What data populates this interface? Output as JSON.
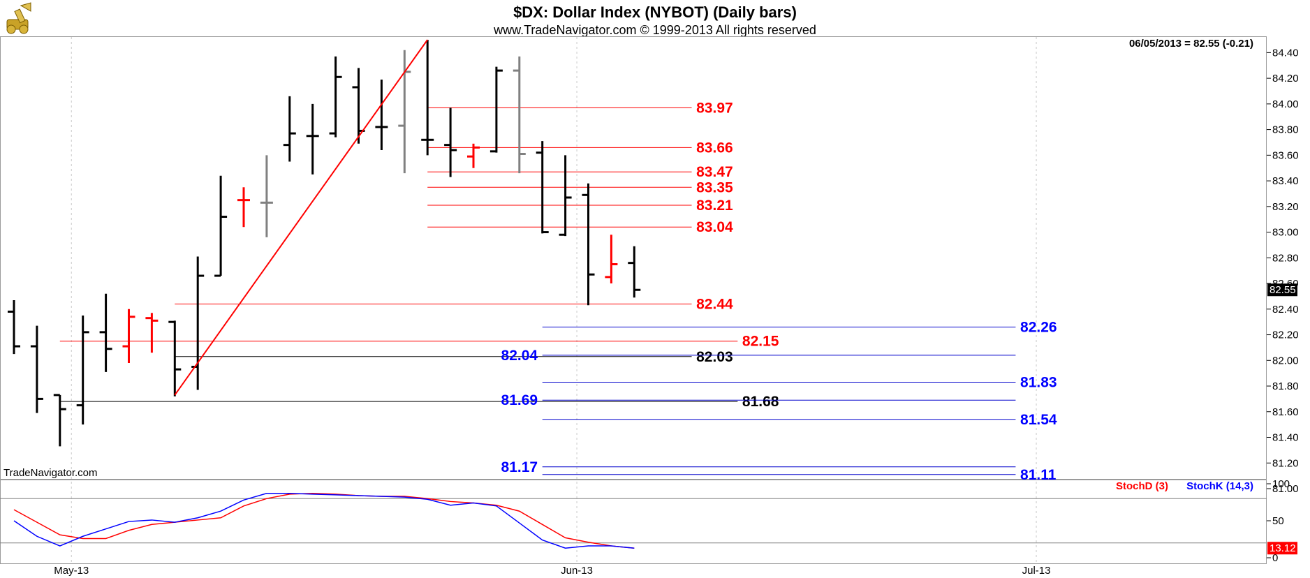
{
  "header": {
    "title": "$DX:  Dollar Index (NYBOT)  (Daily bars)",
    "subtitle": "www.TradeNavigator.com © 1999-2013 All rights reserved",
    "last_quote": "06/05/2013 = 82.55 (-0.21)",
    "watermark": "TradeNavigator.com",
    "logo_icon": "cannon-icon"
  },
  "chart_data": [
    {
      "type": "ohlc",
      "ylim": [
        81.0,
        84.5
      ],
      "yticks": [
        "84.40",
        "84.20",
        "84.00",
        "83.80",
        "83.60",
        "83.40",
        "83.20",
        "83.00",
        "82.80",
        "82.60",
        "82.40",
        "82.20",
        "82.00",
        "81.80",
        "81.60",
        "81.40",
        "81.20",
        "81.00"
      ],
      "x_tick_labels": [
        {
          "label": "May-13",
          "day": 2.5
        },
        {
          "label": "Jun-13",
          "day": 24.5
        },
        {
          "label": "Jul-13",
          "day": 44.5
        }
      ],
      "last_price_label": "82.55",
      "bars": [
        {
          "day": 0,
          "high": 82.47,
          "low": 82.05,
          "open": 82.38,
          "close": 82.11,
          "color": "#000000"
        },
        {
          "day": 1,
          "high": 82.27,
          "low": 81.59,
          "open": 82.11,
          "close": 81.7,
          "color": "#000000"
        },
        {
          "day": 2,
          "high": 81.73,
          "low": 81.33,
          "open": 81.73,
          "close": 81.62,
          "color": "#000000"
        },
        {
          "day": 3,
          "high": 82.35,
          "low": 81.5,
          "open": 81.65,
          "close": 82.22,
          "color": "#000000"
        },
        {
          "day": 4,
          "high": 82.52,
          "low": 81.91,
          "open": 82.22,
          "close": 82.09,
          "color": "#000000"
        },
        {
          "day": 5,
          "high": 82.4,
          "low": 81.98,
          "open": 82.11,
          "close": 82.34,
          "color": "#ff0000"
        },
        {
          "day": 6,
          "high": 82.37,
          "low": 82.06,
          "open": 82.33,
          "close": 82.31,
          "color": "#ff0000"
        },
        {
          "day": 7,
          "high": 82.31,
          "low": 81.72,
          "open": 82.3,
          "close": 81.93,
          "color": "#000000"
        },
        {
          "day": 8,
          "high": 82.81,
          "low": 81.77,
          "open": 81.95,
          "close": 82.66,
          "color": "#000000"
        },
        {
          "day": 9,
          "high": 83.44,
          "low": 82.66,
          "open": 82.66,
          "close": 83.12,
          "color": "#000000"
        },
        {
          "day": 10,
          "high": 83.35,
          "low": 83.04,
          "open": 83.25,
          "close": 83.25,
          "color": "#ff0000"
        },
        {
          "day": 11,
          "high": 83.6,
          "low": 82.96,
          "open": 83.23,
          "close": 83.23,
          "color": "#808080"
        },
        {
          "day": 12,
          "high": 84.06,
          "low": 83.55,
          "open": 83.68,
          "close": 83.77,
          "color": "#000000"
        },
        {
          "day": 13,
          "high": 84.0,
          "low": 83.45,
          "open": 83.75,
          "close": 83.75,
          "color": "#000000"
        },
        {
          "day": 14,
          "high": 84.37,
          "low": 83.74,
          "open": 83.77,
          "close": 84.21,
          "color": "#000000"
        },
        {
          "day": 15,
          "high": 84.28,
          "low": 83.69,
          "open": 84.13,
          "close": 83.79,
          "color": "#000000"
        },
        {
          "day": 16,
          "high": 84.19,
          "low": 83.64,
          "open": 83.82,
          "close": 83.82,
          "color": "#000000"
        },
        {
          "day": 17,
          "high": 84.42,
          "low": 83.46,
          "open": 83.83,
          "close": 84.25,
          "color": "#808080"
        },
        {
          "day": 18,
          "high": 84.5,
          "low": 83.6,
          "open": 83.72,
          "close": 83.72,
          "color": "#000000"
        },
        {
          "day": 19,
          "high": 83.97,
          "low": 83.43,
          "open": 83.68,
          "close": 83.64,
          "color": "#000000"
        },
        {
          "day": 20,
          "high": 83.69,
          "low": 83.5,
          "open": 83.59,
          "close": 83.66,
          "color": "#ff0000"
        },
        {
          "day": 21,
          "high": 84.29,
          "low": 83.62,
          "open": 83.63,
          "close": 84.26,
          "color": "#000000"
        },
        {
          "day": 22,
          "high": 84.37,
          "low": 83.46,
          "open": 84.26,
          "close": 83.61,
          "color": "#808080"
        },
        {
          "day": 23,
          "high": 83.71,
          "low": 82.99,
          "open": 83.62,
          "close": 83.0,
          "color": "#000000"
        },
        {
          "day": 24,
          "high": 83.6,
          "low": 82.97,
          "open": 82.98,
          "close": 83.27,
          "color": "#000000"
        },
        {
          "day": 25,
          "high": 83.38,
          "low": 82.43,
          "open": 83.29,
          "close": 82.67,
          "color": "#000000"
        },
        {
          "day": 26,
          "high": 82.98,
          "low": 82.6,
          "open": 82.65,
          "close": 82.75,
          "color": "#ff0000"
        },
        {
          "day": 27,
          "high": 82.89,
          "low": 82.49,
          "open": 82.76,
          "close": 82.55,
          "color": "#000000"
        }
      ],
      "trendline": {
        "from": {
          "day": 7,
          "price": 81.73
        },
        "to": {
          "day": 18,
          "price": 84.5
        },
        "color": "#ff0000"
      },
      "levels": [
        {
          "price": 83.97,
          "label": "83.97",
          "color": "#ff0000",
          "from_day": 18,
          "to_day": 29.5,
          "label_side": "right",
          "label_day": 29.7,
          "label_color": "#ff0000"
        },
        {
          "price": 83.66,
          "label": "83.66",
          "color": "#ff0000",
          "from_day": 18,
          "to_day": 29.5,
          "label_side": "right",
          "label_day": 29.7,
          "label_color": "#ff0000"
        },
        {
          "price": 83.47,
          "label": "83.47",
          "color": "#ff0000",
          "from_day": 18,
          "to_day": 29.5,
          "label_side": "right",
          "label_day": 29.7,
          "label_color": "#ff0000"
        },
        {
          "price": 83.35,
          "label": "83.35",
          "color": "#ff0000",
          "from_day": 18,
          "to_day": 29.5,
          "label_side": "right",
          "label_day": 29.7,
          "label_color": "#ff0000"
        },
        {
          "price": 83.21,
          "label": "83.21",
          "color": "#ff0000",
          "from_day": 18,
          "to_day": 29.5,
          "label_side": "right",
          "label_day": 29.7,
          "label_color": "#ff0000"
        },
        {
          "price": 83.04,
          "label": "83.04",
          "color": "#ff0000",
          "from_day": 18,
          "to_day": 29.5,
          "label_side": "right",
          "label_day": 29.7,
          "label_color": "#ff0000"
        },
        {
          "price": 82.44,
          "label": "82.44",
          "color": "#ff0000",
          "from_day": 7,
          "to_day": 29.5,
          "label_side": "right",
          "label_day": 29.7,
          "label_color": "#ff0000"
        },
        {
          "price": 82.15,
          "label": "82.15",
          "color": "#ff0000",
          "from_day": 2,
          "to_day": 31.5,
          "label_side": "right",
          "label_day": 31.7,
          "label_color": "#ff0000"
        },
        {
          "price": 82.03,
          "label": "82.03",
          "color": "#000000",
          "from_day": 7,
          "to_day": 29.5,
          "label_side": "right",
          "label_day": 29.7,
          "label_color": "#000000"
        },
        {
          "price": 81.68,
          "label": "81.68",
          "color": "#000000",
          "from_day": 2,
          "to_day": 31.5,
          "label_side": "right",
          "label_day": 31.7,
          "label_color": "#000000"
        },
        {
          "price": 82.26,
          "label": "82.26",
          "color": "#0000cc",
          "from_day": 23,
          "to_day": 43.6,
          "label_side": "right",
          "label_day": 43.8,
          "label_color": "#0000ff"
        },
        {
          "price": 82.04,
          "label": "82.04",
          "color": "#0000cc",
          "from_day": 23,
          "to_day": 43.6,
          "label_side": "left",
          "label_day": 22.8,
          "label_color": "#0000ff"
        },
        {
          "price": 81.83,
          "label": "81.83",
          "color": "#0000cc",
          "from_day": 23,
          "to_day": 43.6,
          "label_side": "right",
          "label_day": 43.8,
          "label_color": "#0000ff"
        },
        {
          "price": 81.69,
          "label": "81.69",
          "color": "#0000cc",
          "from_day": 23,
          "to_day": 43.6,
          "label_side": "left",
          "label_day": 22.8,
          "label_color": "#0000ff"
        },
        {
          "price": 81.54,
          "label": "81.54",
          "color": "#0000cc",
          "from_day": 23,
          "to_day": 43.6,
          "label_side": "right",
          "label_day": 43.8,
          "label_color": "#0000ff"
        },
        {
          "price": 81.17,
          "label": "81.17",
          "color": "#0000cc",
          "from_day": 23,
          "to_day": 43.6,
          "label_side": "left",
          "label_day": 22.8,
          "label_color": "#0000ff"
        },
        {
          "price": 81.11,
          "label": "81.11",
          "color": "#0000cc",
          "from_day": 23,
          "to_day": 43.6,
          "label_side": "right",
          "label_day": 43.8,
          "label_color": "#0000ff"
        }
      ]
    },
    {
      "type": "line",
      "ylim": [
        0,
        100
      ],
      "yticks": [
        "100",
        "50",
        "0"
      ],
      "reference_lines": [
        80,
        20
      ],
      "last_value_label": "13.12",
      "legend": [
        {
          "name": "StochD (3)",
          "color": "#ff0000"
        },
        {
          "name": "StochK (14,3)",
          "color": "#0000ff"
        }
      ],
      "series": [
        {
          "name": "StochD (3)",
          "color": "#ff0000",
          "x": [
            0,
            1,
            2,
            3,
            4,
            5,
            6,
            7,
            8,
            9,
            10,
            11,
            12,
            13,
            14,
            15,
            16,
            17,
            18,
            19,
            20,
            21,
            22,
            23,
            24,
            25,
            26,
            27
          ],
          "values": [
            65,
            48,
            31,
            26,
            26,
            37,
            45,
            48,
            51,
            54,
            70,
            80,
            86,
            87,
            86,
            84,
            83,
            83,
            80,
            76,
            74,
            71,
            63,
            45,
            27,
            21,
            16,
            13
          ]
        },
        {
          "name": "StochK (14,3)",
          "color": "#0000ff",
          "x": [
            0,
            1,
            2,
            3,
            4,
            5,
            6,
            7,
            8,
            9,
            10,
            11,
            12,
            13,
            14,
            15,
            16,
            17,
            18,
            19,
            20,
            21,
            22,
            23,
            24,
            25,
            26,
            27
          ],
          "values": [
            50,
            29,
            16,
            29,
            39,
            49,
            51,
            48,
            54,
            63,
            78,
            87,
            87,
            86,
            85,
            84,
            83,
            82,
            79,
            71,
            74,
            70,
            47,
            24,
            13,
            16,
            16,
            13
          ]
        }
      ]
    }
  ]
}
